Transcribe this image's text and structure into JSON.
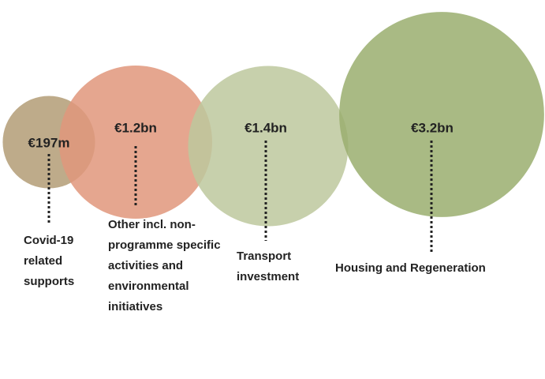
{
  "chart_data": {
    "type": "bubble",
    "categories": [
      "Covid-19 related supports",
      "Other incl. non-programme specific activities and environmental initiatives",
      "Transport investment",
      "Housing and Regeneration"
    ],
    "values": [
      197,
      1200,
      1400,
      3200
    ],
    "value_labels": [
      "€197m",
      "€1.2bn",
      "€1.4bn",
      "€3.2bn"
    ],
    "colors": [
      "#b39c76",
      "#e0967b",
      "#bdc89d",
      "#9aae6f"
    ]
  }
}
